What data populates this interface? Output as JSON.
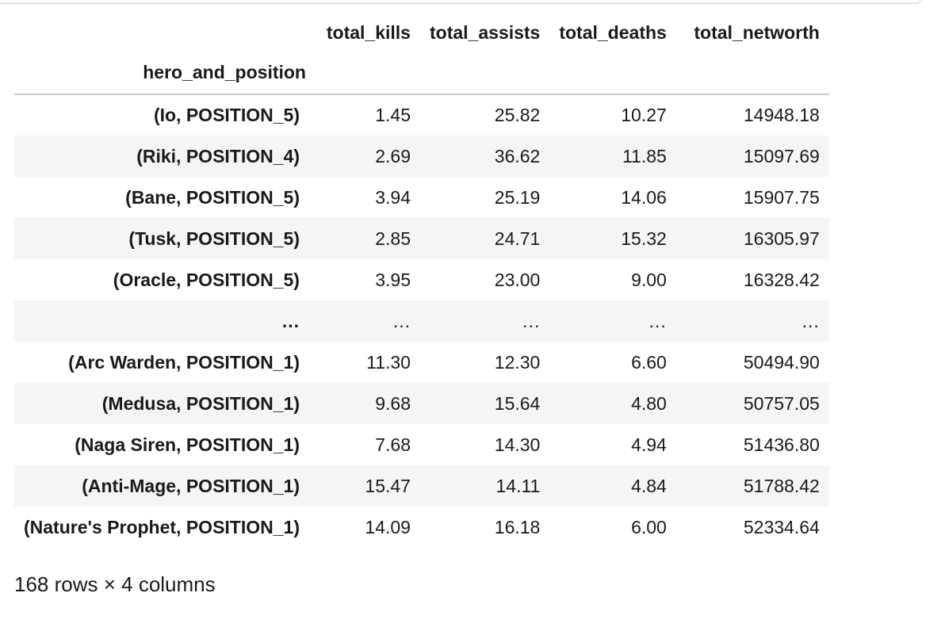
{
  "table": {
    "columns": [
      "total_kills",
      "total_assists",
      "total_deaths",
      "total_networth"
    ],
    "index_name": "hero_and_position",
    "rows": [
      {
        "index": "(Io, POSITION_5)",
        "values": [
          "1.45",
          "25.82",
          "10.27",
          "14948.18"
        ]
      },
      {
        "index": "(Riki, POSITION_4)",
        "values": [
          "2.69",
          "36.62",
          "11.85",
          "15097.69"
        ]
      },
      {
        "index": "(Bane, POSITION_5)",
        "values": [
          "3.94",
          "25.19",
          "14.06",
          "15907.75"
        ]
      },
      {
        "index": "(Tusk, POSITION_5)",
        "values": [
          "2.85",
          "24.71",
          "15.32",
          "16305.97"
        ]
      },
      {
        "index": "(Oracle, POSITION_5)",
        "values": [
          "3.95",
          "23.00",
          "9.00",
          "16328.42"
        ]
      },
      {
        "index": "...",
        "values": [
          "...",
          "...",
          "...",
          "..."
        ]
      },
      {
        "index": "(Arc Warden, POSITION_1)",
        "values": [
          "11.30",
          "12.30",
          "6.60",
          "50494.90"
        ]
      },
      {
        "index": "(Medusa, POSITION_1)",
        "values": [
          "9.68",
          "15.64",
          "4.80",
          "50757.05"
        ]
      },
      {
        "index": "(Naga Siren, POSITION_1)",
        "values": [
          "7.68",
          "14.30",
          "4.94",
          "51436.80"
        ]
      },
      {
        "index": "(Anti-Mage, POSITION_1)",
        "values": [
          "15.47",
          "14.11",
          "4.84",
          "51788.42"
        ]
      },
      {
        "index": "(Nature's Prophet, POSITION_1)",
        "values": [
          "14.09",
          "16.18",
          "6.00",
          "52334.64"
        ]
      }
    ]
  },
  "shape_info": "168 rows × 4 columns"
}
